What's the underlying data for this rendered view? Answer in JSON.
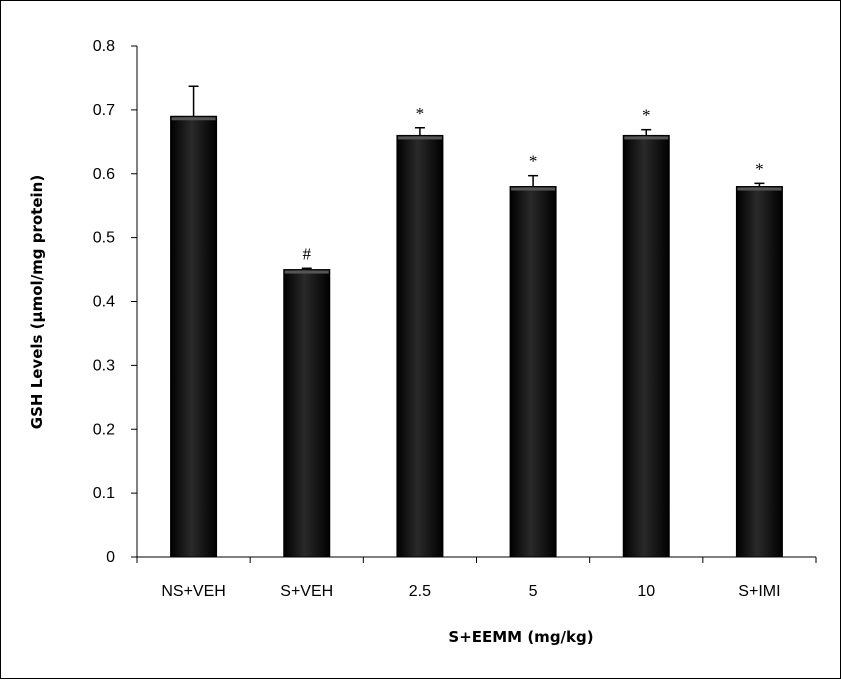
{
  "chart_data": {
    "type": "bar",
    "title": "",
    "xlabel": "S+EEMM (mg/kg)",
    "ylabel": "GSH Levels (µmol/mg protein)",
    "ylim": [
      0,
      0.8
    ],
    "yticks": [
      "0",
      "0.1",
      "0.2",
      "0.3",
      "0.4",
      "0.5",
      "0.6",
      "0.7",
      "0.8"
    ],
    "categories": [
      "NS+VEH",
      "S+VEH",
      "2.5",
      "5",
      "10",
      "S+IMI"
    ],
    "values": [
      0.69,
      0.45,
      0.66,
      0.58,
      0.66,
      0.58
    ],
    "errors": [
      0.047,
      0.002,
      0.012,
      0.017,
      0.009,
      0.005
    ],
    "annotations": [
      "",
      "#",
      "*",
      "*",
      "*",
      "*"
    ],
    "grid": false,
    "legend": "none",
    "bar_color": "#000000"
  }
}
